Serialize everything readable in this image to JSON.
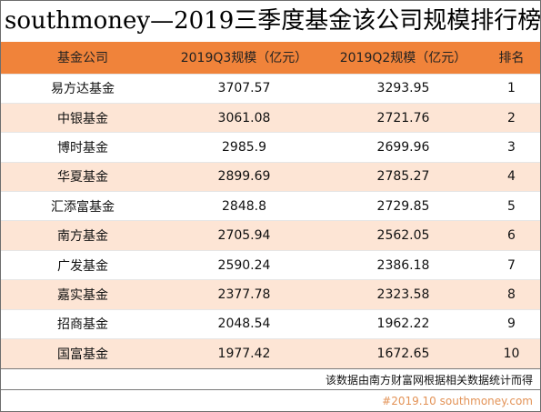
{
  "title": "southmoney—2019三季度基金该公司规模排行榜",
  "table": {
    "headers": [
      "基金公司",
      "2019Q3规模（亿元）",
      "2019Q2规模（亿元）",
      "排名"
    ],
    "rows": [
      [
        "易方达基金",
        "3707.57",
        "3293.95",
        "1"
      ],
      [
        "中银基金",
        "3061.08",
        "2721.76",
        "2"
      ],
      [
        "博时基金",
        "2985.9",
        "2699.96",
        "3"
      ],
      [
        "华夏基金",
        "2899.69",
        "2785.27",
        "4"
      ],
      [
        "汇添富基金",
        "2848.8",
        "2729.85",
        "5"
      ],
      [
        "南方基金",
        "2705.94",
        "2562.05",
        "6"
      ],
      [
        "广发基金",
        "2590.24",
        "2386.18",
        "7"
      ],
      [
        "嘉实基金",
        "2377.78",
        "2323.58",
        "8"
      ],
      [
        "招商基金",
        "2048.54",
        "1962.22",
        "9"
      ],
      [
        "国富基金",
        "1977.42",
        "1672.65",
        "10"
      ]
    ]
  },
  "note": "该数据由南方财富网根据相关数据统计而得",
  "source": "#2019.10 southmoney.com",
  "colors": {
    "header_bg": "#f0833a",
    "stripe_bg": "#fde5d5",
    "source_text": "#e39357"
  }
}
